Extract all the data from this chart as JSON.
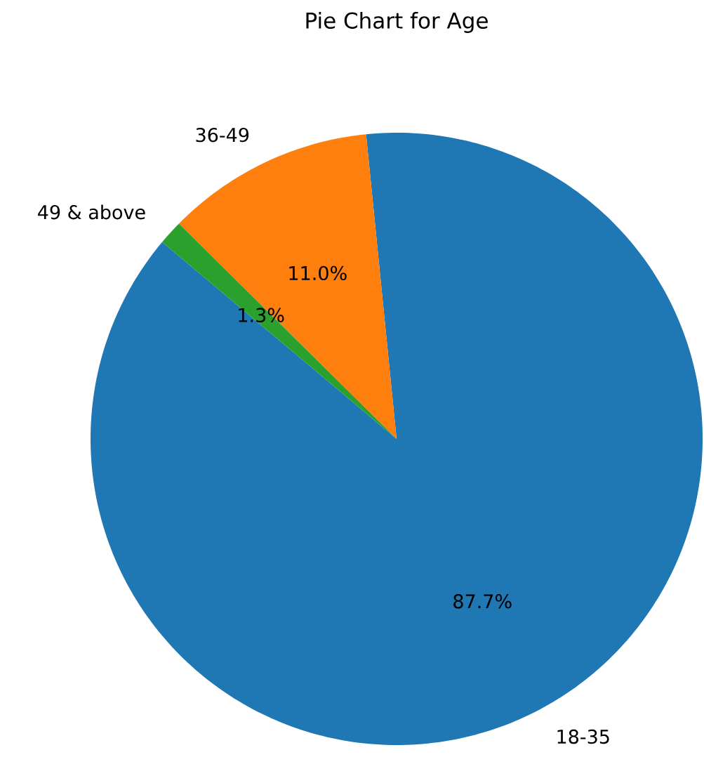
{
  "chart_data": {
    "type": "pie",
    "title": "Pie Chart for Age",
    "categories": [
      "18-35",
      "36-49",
      "49 & above"
    ],
    "values": [
      87.7,
      11.0,
      1.3
    ],
    "colors": [
      "#1f77b4",
      "#ff7f0e",
      "#2ca02c"
    ],
    "value_labels": [
      "87.7%",
      "11.0%",
      "1.3%"
    ]
  }
}
